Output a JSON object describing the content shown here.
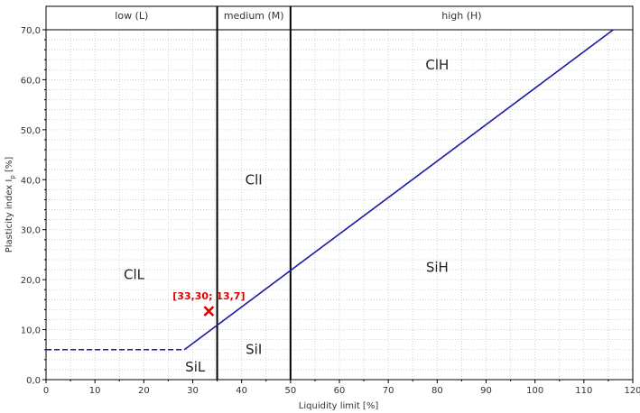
{
  "chart_data": {
    "type": "line",
    "xlabel": "Liquidity limit [%]",
    "ylabel_main": "Plasticity index I",
    "ylabel_sub": "p",
    "ylabel_unit": " [%]",
    "xlim": [
      0,
      120
    ],
    "ylim": [
      0,
      70
    ],
    "x_ticks": [
      0,
      10,
      20,
      30,
      40,
      50,
      60,
      70,
      80,
      90,
      100,
      110,
      120
    ],
    "y_ticks": [
      0,
      10,
      20,
      30,
      40,
      50,
      60,
      70
    ],
    "x_tick_labels": [
      "0",
      "10",
      "20",
      "30",
      "40",
      "50",
      "60",
      "70",
      "80",
      "90",
      "100",
      "110",
      "120"
    ],
    "y_tick_labels": [
      "0,0",
      "10,0",
      "20,0",
      "30,0",
      "40,0",
      "50,0",
      "60,0",
      "70,0"
    ],
    "grid": true,
    "bands": [
      {
        "label": "low (L)",
        "from": 0,
        "to": 35
      },
      {
        "label": "medium (M)",
        "from": 35,
        "to": 50
      },
      {
        "label": "high (H)",
        "from": 50,
        "to": 120
      }
    ],
    "vertical_lines": [
      35,
      50
    ],
    "series": [
      {
        "style": "dashed",
        "color": "#1a1aa8",
        "x": [
          0,
          28.3
        ],
        "y": [
          6,
          6
        ]
      },
      {
        "style": "solid",
        "color": "#1a1aa8",
        "x": [
          28.3,
          116
        ],
        "y": [
          6,
          70
        ]
      }
    ],
    "zones": [
      {
        "label": "ClH",
        "x": 80,
        "y": 63
      },
      {
        "label": "ClI",
        "x": 42.5,
        "y": 40
      },
      {
        "label": "ClL",
        "x": 18,
        "y": 21
      },
      {
        "label": "SiH",
        "x": 80,
        "y": 22.5
      },
      {
        "label": "SiI",
        "x": 42.5,
        "y": 6
      },
      {
        "label": "SiL",
        "x": 30.5,
        "y": 2.5
      }
    ],
    "point": {
      "x": 33.3,
      "y": 13.7,
      "label": "[33,30;  13,7]",
      "color": "#e00000"
    }
  }
}
